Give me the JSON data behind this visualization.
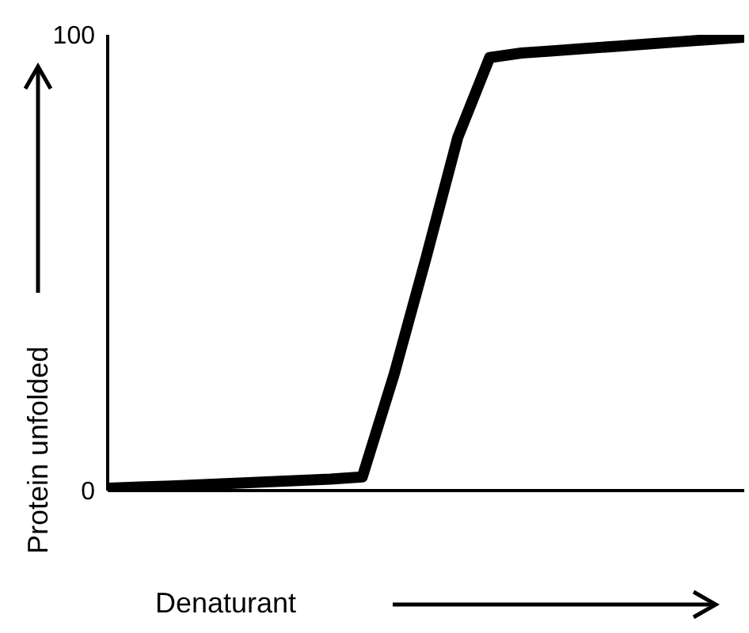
{
  "chart_data": {
    "type": "line",
    "xlabel": "Denaturant",
    "ylabel": "Protein unfolded",
    "categories": [
      null,
      null,
      null,
      null,
      null,
      null,
      null,
      null,
      null,
      null,
      null,
      null,
      null,
      null,
      null,
      null,
      null,
      null,
      null,
      null,
      null
    ],
    "series": [
      {
        "color": "#000000",
        "values": [
          0.5,
          0.8,
          1,
          1.3,
          1.6,
          1.9,
          2.2,
          2.5,
          3,
          25.5,
          51,
          77.5,
          95,
          96,
          96.5,
          97,
          97.5,
          98,
          98.5,
          99,
          99.5
        ]
      }
    ],
    "ylim": [
      0,
      100
    ],
    "yticks": [
      0,
      100
    ],
    "grid": false,
    "legend": false,
    "marker": "none",
    "line_style": "solid"
  }
}
